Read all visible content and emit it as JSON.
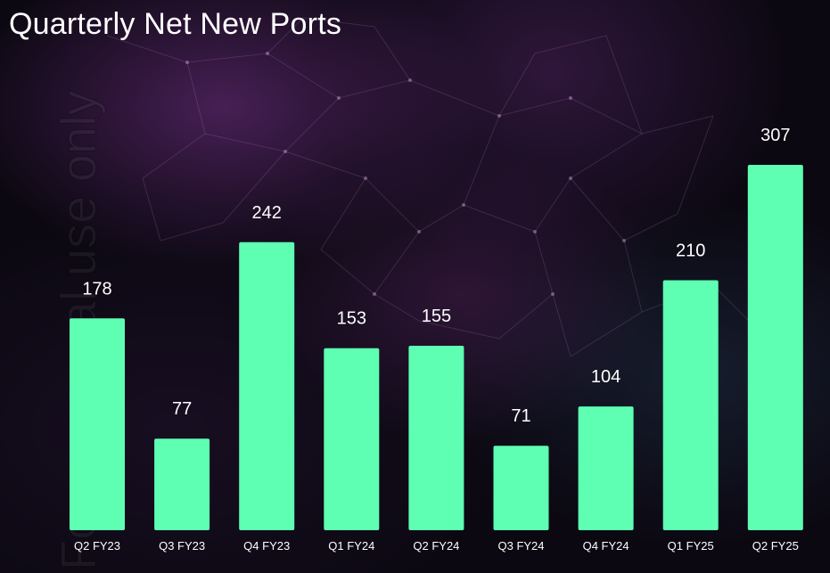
{
  "title": "Quarterly Net New Ports",
  "watermark": "For personal use only",
  "colors": {
    "bar": "#5effb3",
    "text": "#ffffff",
    "background": "#0b0811"
  },
  "chart_data": {
    "type": "bar",
    "title": "Quarterly Net New Ports",
    "xlabel": "",
    "ylabel": "",
    "categories": [
      "Q2 FY23",
      "Q3 FY23",
      "Q4 FY23",
      "Q1 FY24",
      "Q2 FY24",
      "Q3 FY24",
      "Q4 FY24",
      "Q1 FY25",
      "Q2 FY25"
    ],
    "values": [
      178,
      77,
      242,
      153,
      155,
      71,
      104,
      210,
      307
    ],
    "data_labels": [
      "178",
      "77",
      "242",
      "153",
      "155",
      "71",
      "104",
      "210",
      "307"
    ],
    "ylim": [
      0,
      307
    ],
    "grid": false,
    "legend": "none"
  }
}
